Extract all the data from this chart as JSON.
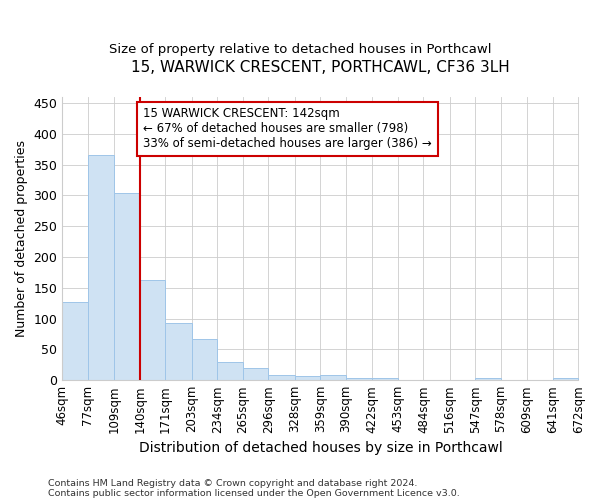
{
  "title1": "15, WARWICK CRESCENT, PORTHCAWL, CF36 3LH",
  "title2": "Size of property relative to detached houses in Porthcawl",
  "xlabel": "Distribution of detached houses by size in Porthcawl",
  "ylabel": "Number of detached properties",
  "footnote1": "Contains HM Land Registry data © Crown copyright and database right 2024.",
  "footnote2": "Contains public sector information licensed under the Open Government Licence v3.0.",
  "bin_edges": [
    46,
    77,
    109,
    140,
    171,
    203,
    234,
    265,
    296,
    328,
    359,
    390,
    422,
    453,
    484,
    516,
    547,
    578,
    609,
    641,
    672
  ],
  "bar_heights": [
    127,
    365,
    304,
    163,
    93,
    67,
    30,
    20,
    8,
    6,
    8,
    4,
    4,
    1,
    1,
    0,
    3,
    0,
    0,
    3
  ],
  "bar_color": "#cfe2f3",
  "bar_edge_color": "#9fc5e8",
  "grid_color": "#cccccc",
  "vline_x": 140,
  "vline_color": "#cc0000",
  "annotation_line1": "15 WARWICK CRESCENT: 142sqm",
  "annotation_line2": "← 67% of detached houses are smaller (798)",
  "annotation_line3": "33% of semi-detached houses are larger (386) →",
  "annotation_box_color": "#ffffff",
  "annotation_box_edge": "#cc0000",
  "ylim": [
    0,
    460
  ],
  "yticks": [
    0,
    50,
    100,
    150,
    200,
    250,
    300,
    350,
    400,
    450
  ],
  "bg_color": "#ffffff",
  "title1_fontsize": 11,
  "title2_fontsize": 10
}
